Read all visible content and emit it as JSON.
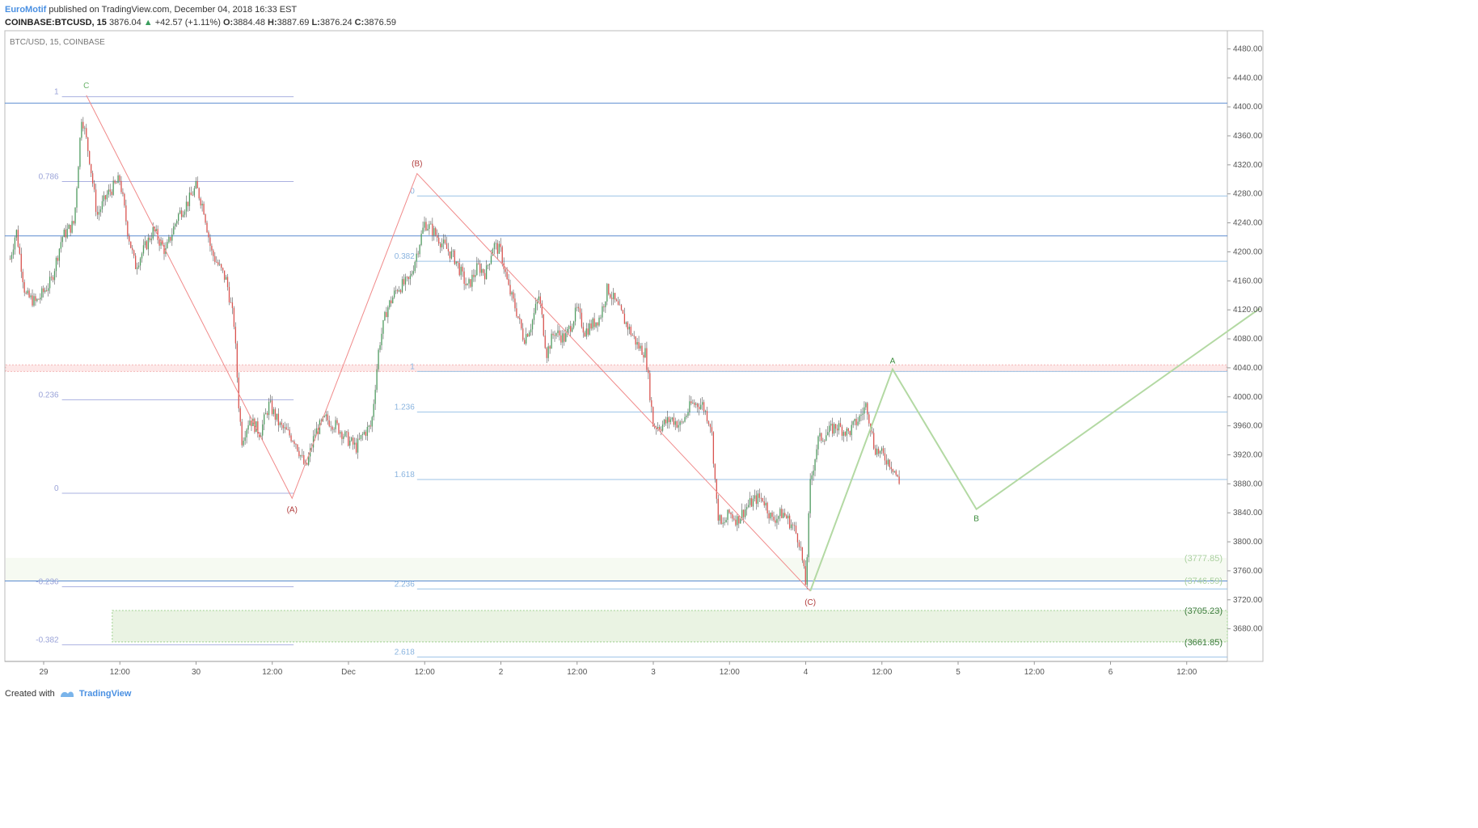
{
  "header": {
    "author": "EuroMotif",
    "published_text": "published on TradingView.com, December 04, 2018 16:33 EST",
    "symbol": "COINBASE:BTCUSD, 15",
    "last": "3876.04",
    "change": "+42.57 (+1.11%)",
    "o_label": "O:",
    "o": "3884.48",
    "h_label": "H:",
    "h": "3887.69",
    "l_label": "L:",
    "l": "3876.24",
    "c_label": "C:",
    "c": "3876.59"
  },
  "pane_title": "BTC/USD, 15, COINBASE",
  "footer": {
    "created_with": "Created with",
    "brand": "TradingView"
  },
  "colors": {
    "up": "#4e9a5f",
    "down": "#d9534f",
    "wick": "#555555",
    "fib": "#aab0e0",
    "blue_line": "#5b8bd0",
    "red_zone": "#f4b6b6",
    "wave_red": "#f08a8a",
    "wave_green": "#b3d9a3",
    "zone_green": "#eaf3e3"
  },
  "chart_data": {
    "type": "candlestick",
    "interval": "15",
    "ylim": [
      3635,
      4505
    ],
    "y_ticks": [
      4480,
      4440,
      4400,
      4360,
      4320,
      4280,
      4240,
      4200,
      4160,
      4120,
      4080,
      4040,
      4000,
      3960,
      3920,
      3880,
      3840,
      3800,
      3760,
      3720,
      3680
    ],
    "x_ticks": [
      {
        "label": "29",
        "t": 0.0
      },
      {
        "label": "12:00",
        "t": 0.5
      },
      {
        "label": "30",
        "t": 1.0
      },
      {
        "label": "12:00",
        "t": 1.5
      },
      {
        "label": "Dec",
        "t": 2.0
      },
      {
        "label": "12:00",
        "t": 2.5
      },
      {
        "label": "2",
        "t": 3.0
      },
      {
        "label": "12:00",
        "t": 3.5
      },
      {
        "label": "3",
        "t": 4.0
      },
      {
        "label": "12:00",
        "t": 4.5
      },
      {
        "label": "4",
        "t": 5.0
      },
      {
        "label": "12:00",
        "t": 5.5
      },
      {
        "label": "5",
        "t": 6.0
      },
      {
        "label": "12:00",
        "t": 6.5
      },
      {
        "label": "6",
        "t": 7.0
      },
      {
        "label": "12:00",
        "t": 7.5
      }
    ],
    "price_path": [
      [
        -0.22,
        4190
      ],
      [
        -0.18,
        4230
      ],
      [
        -0.12,
        4140
      ],
      [
        -0.05,
        4130
      ],
      [
        0.05,
        4160
      ],
      [
        0.12,
        4220
      ],
      [
        0.2,
        4240
      ],
      [
        0.25,
        4390
      ],
      [
        0.3,
        4330
      ],
      [
        0.35,
        4250
      ],
      [
        0.42,
        4280
      ],
      [
        0.5,
        4300
      ],
      [
        0.55,
        4230
      ],
      [
        0.6,
        4180
      ],
      [
        0.65,
        4200
      ],
      [
        0.72,
        4230
      ],
      [
        0.8,
        4200
      ],
      [
        0.88,
        4250
      ],
      [
        0.95,
        4270
      ],
      [
        1.0,
        4290
      ],
      [
        1.05,
        4260
      ],
      [
        1.1,
        4200
      ],
      [
        1.15,
        4180
      ],
      [
        1.2,
        4160
      ],
      [
        1.25,
        4100
      ],
      [
        1.28,
        3990
      ],
      [
        1.3,
        3940
      ],
      [
        1.35,
        3970
      ],
      [
        1.42,
        3950
      ],
      [
        1.48,
        3990
      ],
      [
        1.55,
        3960
      ],
      [
        1.6,
        3950
      ],
      [
        1.65,
        3940
      ],
      [
        1.72,
        3900
      ],
      [
        1.78,
        3950
      ],
      [
        1.85,
        3970
      ],
      [
        1.92,
        3960
      ],
      [
        2.0,
        3940
      ],
      [
        2.05,
        3930
      ],
      [
        2.1,
        3950
      ],
      [
        2.15,
        3960
      ],
      [
        2.2,
        4070
      ],
      [
        2.25,
        4120
      ],
      [
        2.32,
        4150
      ],
      [
        2.4,
        4160
      ],
      [
        2.45,
        4200
      ],
      [
        2.5,
        4240
      ],
      [
        2.55,
        4230
      ],
      [
        2.62,
        4210
      ],
      [
        2.7,
        4190
      ],
      [
        2.78,
        4150
      ],
      [
        2.85,
        4180
      ],
      [
        2.9,
        4170
      ],
      [
        2.95,
        4210
      ],
      [
        3.0,
        4200
      ],
      [
        3.05,
        4150
      ],
      [
        3.1,
        4120
      ],
      [
        3.15,
        4080
      ],
      [
        3.2,
        4100
      ],
      [
        3.25,
        4140
      ],
      [
        3.3,
        4060
      ],
      [
        3.35,
        4090
      ],
      [
        3.42,
        4080
      ],
      [
        3.5,
        4120
      ],
      [
        3.55,
        4090
      ],
      [
        3.6,
        4100
      ],
      [
        3.65,
        4110
      ],
      [
        3.7,
        4150
      ],
      [
        3.75,
        4130
      ],
      [
        3.8,
        4110
      ],
      [
        3.85,
        4090
      ],
      [
        3.9,
        4070
      ],
      [
        3.95,
        4060
      ],
      [
        4.0,
        3960
      ],
      [
        4.05,
        3960
      ],
      [
        4.12,
        3970
      ],
      [
        4.18,
        3960
      ],
      [
        4.25,
        3990
      ],
      [
        4.32,
        3990
      ],
      [
        4.38,
        3960
      ],
      [
        4.42,
        3840
      ],
      [
        4.45,
        3820
      ],
      [
        4.5,
        3840
      ],
      [
        4.55,
        3830
      ],
      [
        4.62,
        3850
      ],
      [
        4.68,
        3860
      ],
      [
        4.72,
        3860
      ],
      [
        4.78,
        3830
      ],
      [
        4.85,
        3840
      ],
      [
        4.92,
        3820
      ],
      [
        4.96,
        3800
      ],
      [
        5.0,
        3740
      ],
      [
        5.03,
        3880
      ],
      [
        5.08,
        3940
      ],
      [
        5.14,
        3950
      ],
      [
        5.2,
        3960
      ],
      [
        5.28,
        3950
      ],
      [
        5.35,
        3970
      ],
      [
        5.4,
        3990
      ],
      [
        5.45,
        3930
      ],
      [
        5.5,
        3920
      ],
      [
        5.55,
        3910
      ],
      [
        5.58,
        3900
      ],
      [
        5.62,
        3876
      ]
    ],
    "fib_retracement_1": {
      "levels": [
        {
          "label": "1",
          "value": 4414
        },
        {
          "label": "0.786",
          "value": 4297
        },
        {
          "label": "0.236",
          "value": 3996
        },
        {
          "label": "0",
          "value": 3867
        },
        {
          "label": "-0.236",
          "value": 3738
        },
        {
          "label": "-0.382",
          "value": 3658
        }
      ]
    },
    "fib_extension_2": {
      "levels": [
        {
          "label": "0",
          "value": 4277
        },
        {
          "label": "0.382",
          "value": 4187
        },
        {
          "label": "1",
          "value": 4035
        },
        {
          "label": "1.236",
          "value": 3979
        },
        {
          "label": "1.618",
          "value": 3886
        },
        {
          "label": "2.236",
          "value": 3735
        },
        {
          "label": "2.618",
          "value": 3641
        }
      ]
    },
    "horizontal_lines": [
      {
        "value": 4405
      },
      {
        "value": 4222
      },
      {
        "value": 3746
      }
    ],
    "red_zone": {
      "from": 4035,
      "to": 4044
    },
    "green_zone_1": {
      "from": 3746.59,
      "to": 3777.85
    },
    "green_zone_2": {
      "from": 3661.85,
      "to": 3705.23
    },
    "price_labels": [
      {
        "text": "(3777.85)",
        "value": 3777.85
      },
      {
        "text": "(3746.59)",
        "value": 3746.59
      },
      {
        "text": "(3705.23)",
        "value": 3705.23
      },
      {
        "text": "(3661.85)",
        "value": 3661.85
      }
    ],
    "waves_red": [
      {
        "label": "C",
        "t": 0.28,
        "v": 4416
      },
      {
        "label": "(A)",
        "t": 1.63,
        "v": 3860
      },
      {
        "label": "(B)",
        "t": 2.45,
        "v": 4308
      },
      {
        "label": "(C)",
        "t": 5.03,
        "v": 3732
      }
    ],
    "waves_green": [
      {
        "label": "",
        "t": 5.03,
        "v": 3732
      },
      {
        "label": "A",
        "t": 5.57,
        "v": 4038
      },
      {
        "label": "B",
        "t": 6.12,
        "v": 3845
      },
      {
        "label": "",
        "t": 7.98,
        "v": 4122
      }
    ]
  }
}
